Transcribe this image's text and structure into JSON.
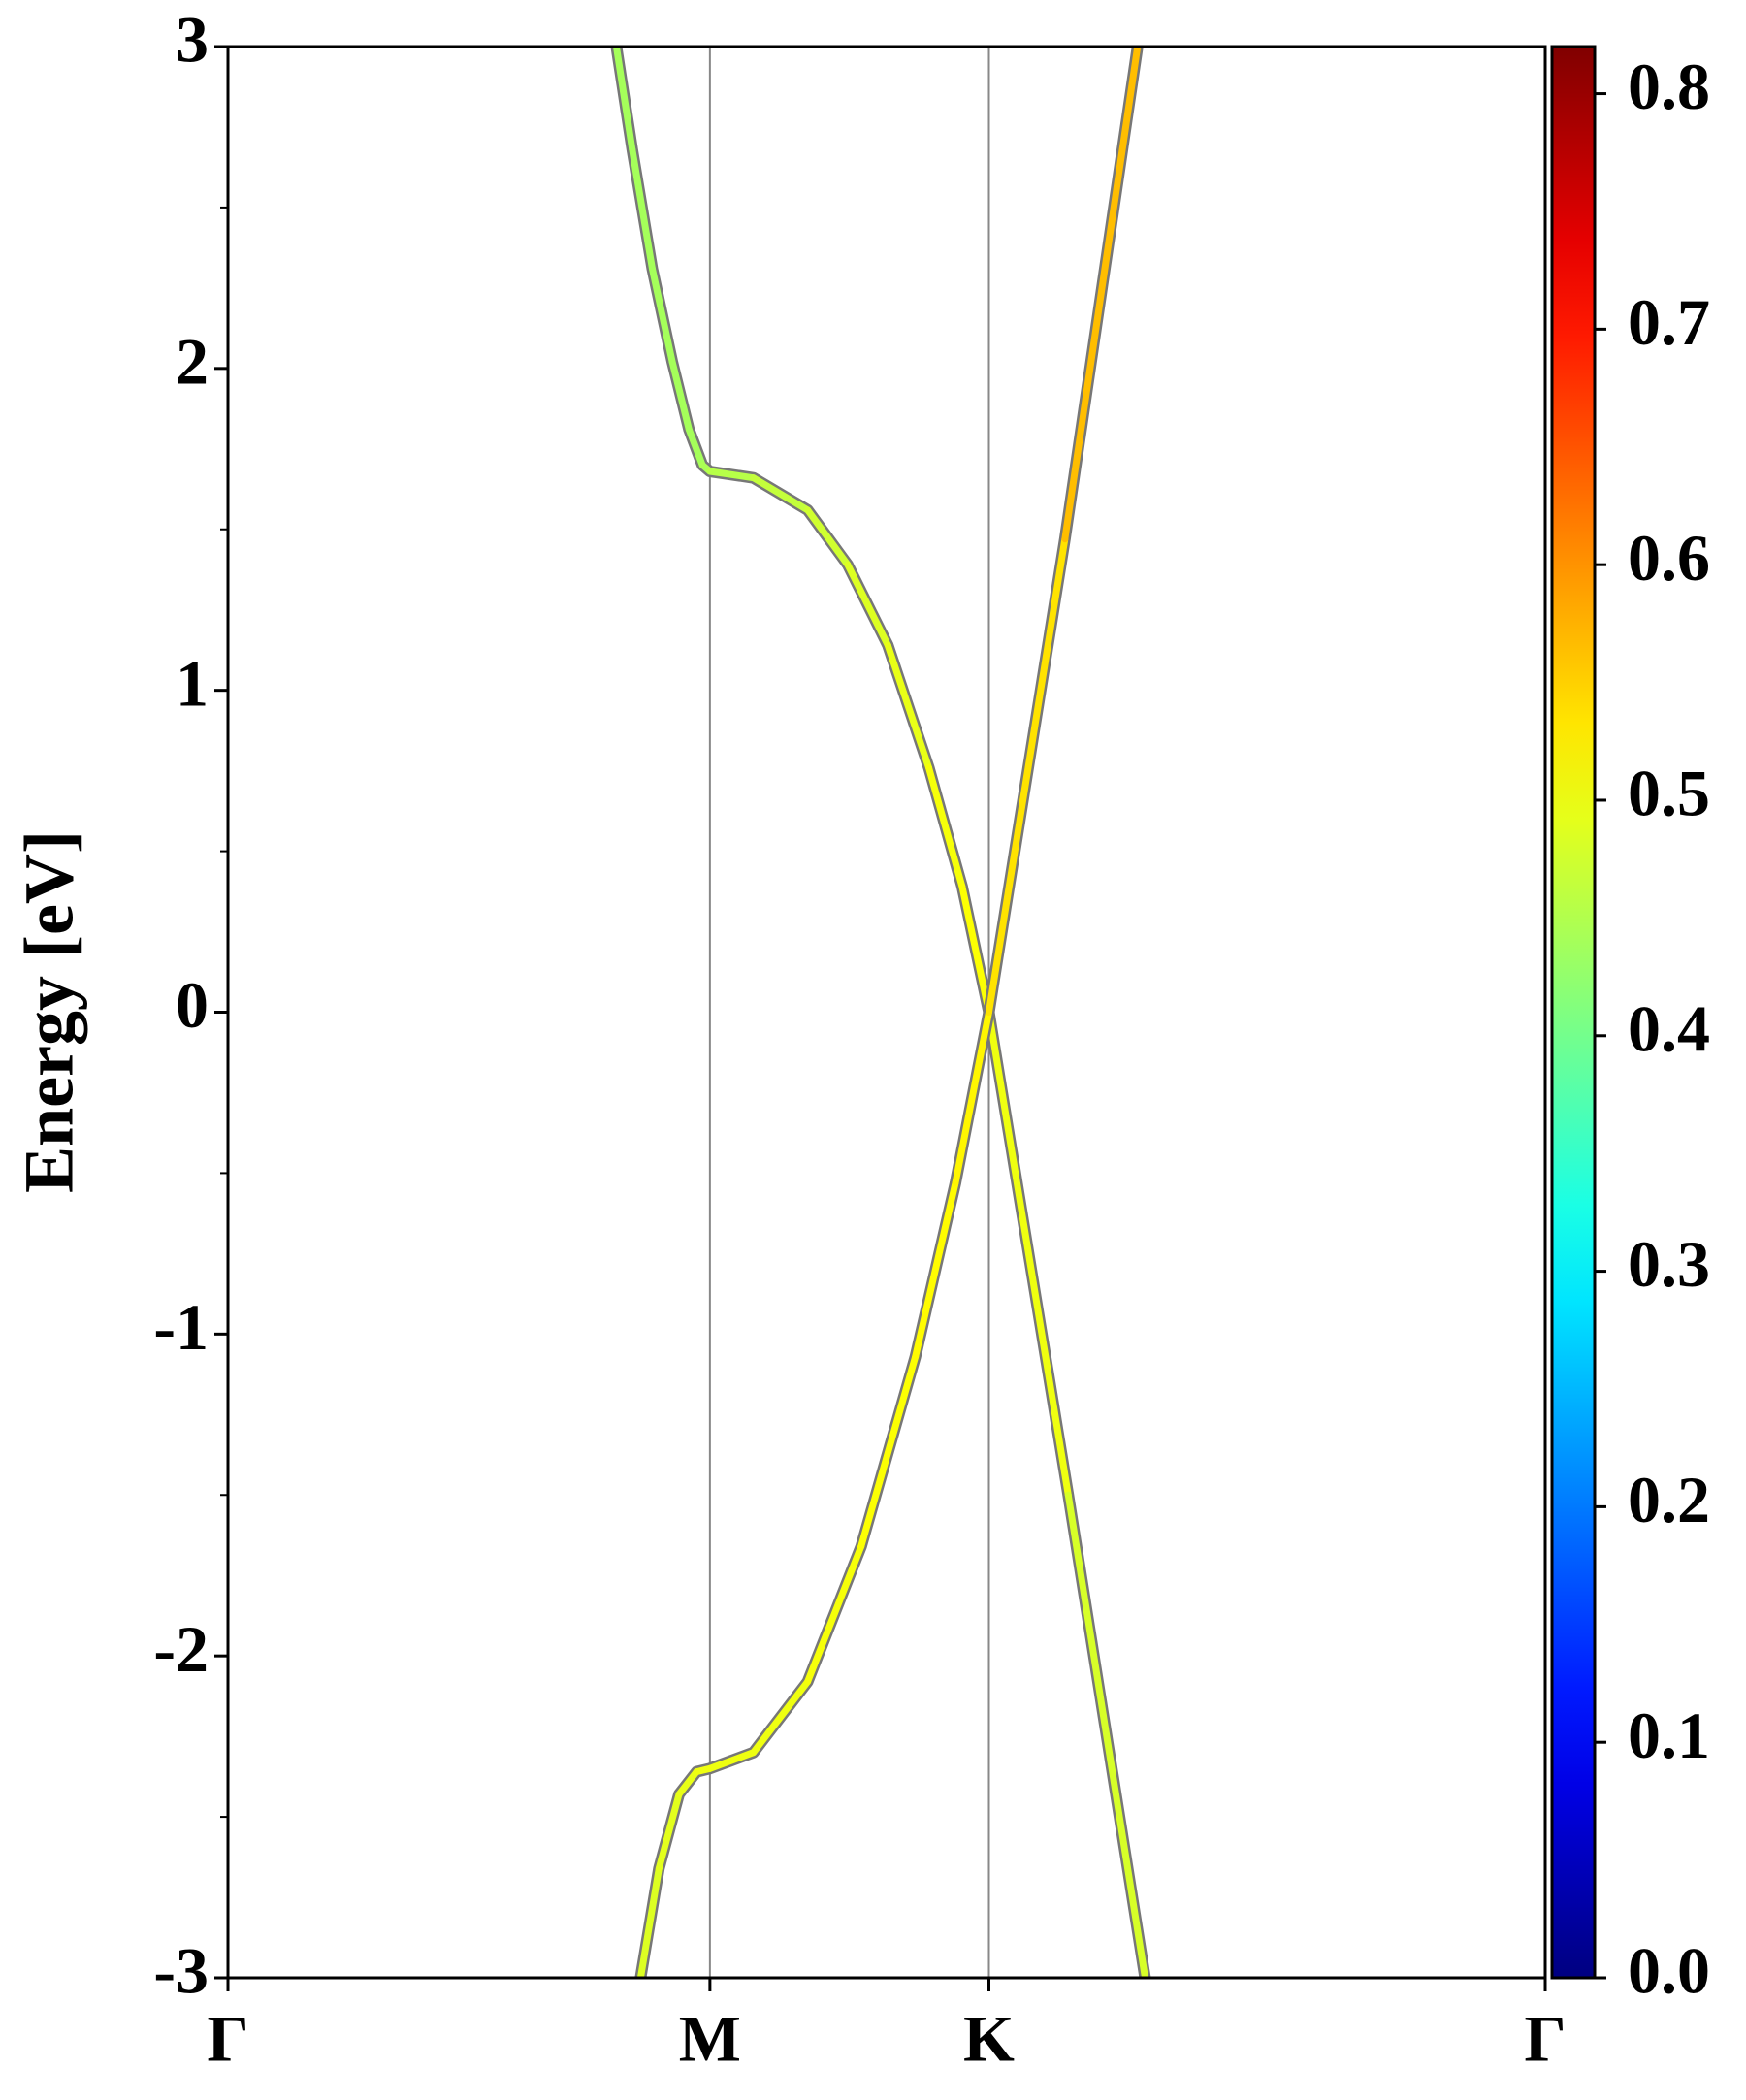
{
  "chart_data": {
    "type": "band-structure",
    "ylabel": "Energy [eV]",
    "xlim": [
      0,
      1.577
    ],
    "ylim": [
      -3,
      3
    ],
    "xticks": [
      {
        "value": 0,
        "label": "Γ"
      },
      {
        "value": 0.577,
        "label": "M"
      },
      {
        "value": 0.911,
        "label": "K"
      },
      {
        "value": 1.577,
        "label": "Γ"
      }
    ],
    "yticks": [
      -3,
      -2,
      -1,
      0,
      1,
      2,
      3
    ],
    "yminorticks": [
      -2.5,
      -1.5,
      -0.5,
      0.5,
      1.5,
      2.5
    ],
    "vlines": true,
    "colormap": "jet",
    "clim": [
      0,
      0.82
    ],
    "colorbar_ticks": [
      {
        "value": 0,
        "label": "0.0"
      },
      {
        "value": 0.1,
        "label": "0.1"
      },
      {
        "value": 0.2,
        "label": "0.2"
      },
      {
        "value": 0.3,
        "label": "0.3"
      },
      {
        "value": 0.4,
        "label": "0.4"
      },
      {
        "value": 0.5,
        "label": "0.5"
      },
      {
        "value": 0.6,
        "label": "0.6"
      },
      {
        "value": 0.7,
        "label": "0.7"
      },
      {
        "value": 0.8,
        "label": "0.8"
      }
    ],
    "series": [
      {
        "x": [
          0.465,
          0.484,
          0.508,
          0.532,
          0.552,
          0.568,
          0.577,
          0.629,
          0.694,
          0.742,
          0.79,
          0.839,
          0.879,
          0.911,
          1.006,
          1.098
        ],
        "values": [
          3.0,
          2.68,
          2.31,
          2.02,
          1.81,
          1.7,
          1.68,
          1.66,
          1.56,
          1.39,
          1.14,
          0.76,
          0.39,
          0.0,
          -1.5,
          -3.0
        ],
        "weights": [
          0.44,
          0.44,
          0.44,
          0.44,
          0.44,
          0.44,
          0.45,
          0.46,
          0.47,
          0.48,
          0.49,
          0.5,
          0.51,
          0.51,
          0.49,
          0.47
        ]
      },
      {
        "x": [
          0.494,
          0.516,
          0.54,
          0.561,
          0.577,
          0.629,
          0.694,
          0.758,
          0.823,
          0.871,
          0.911,
          1.002,
          1.089
        ],
        "values": [
          -3.0,
          -2.66,
          -2.43,
          -2.36,
          -2.35,
          -2.3,
          -2.08,
          -1.66,
          -1.07,
          -0.53,
          0.0,
          1.47,
          3.0
        ],
        "weights": [
          0.48,
          0.49,
          0.49,
          0.5,
          0.5,
          0.5,
          0.5,
          0.51,
          0.51,
          0.52,
          0.52,
          0.55,
          0.58
        ]
      }
    ]
  }
}
